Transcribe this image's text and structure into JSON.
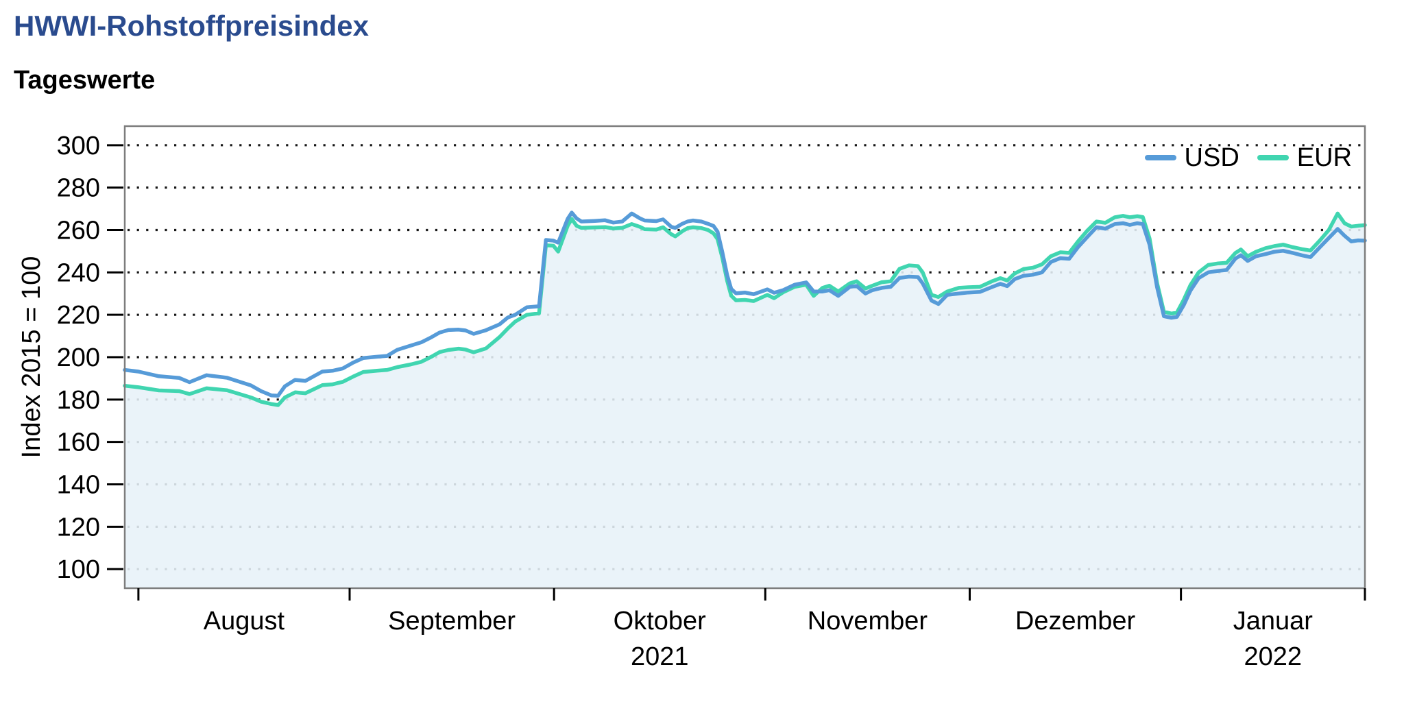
{
  "title": "HWWI-Rohstoffpreisindex",
  "subtitle": "Tageswerte",
  "colors": {
    "title": "#2a4b8e",
    "usd_line": "#569bd8",
    "eur_line": "#40d5b0",
    "grid": "#161616",
    "plot_border": "#7d7d7d",
    "area_fill": "#e7f1f8"
  },
  "chart_data": {
    "type": "line",
    "title": "HWWI-Rohstoffpreisindex",
    "subtitle": "Tageswerte",
    "ylabel": "Index 2015 = 100",
    "xlabel": "",
    "grid": "dotted horizontal",
    "legend_position": "top-right inside plot",
    "y_ticks": [
      300,
      280,
      260,
      240,
      220,
      200,
      180,
      160,
      140,
      120,
      100
    ],
    "ylim": [
      91,
      309
    ],
    "x_domain_days": [
      0,
      182
    ],
    "x_domain_note": "day 0 = 30.07.2021, day 182 = 28.01.2022",
    "x_months": [
      {
        "label": "August",
        "tick_day": 2,
        "mid_day": 17.5
      },
      {
        "label": "September",
        "tick_day": 33,
        "mid_day": 48
      },
      {
        "label": "Oktober",
        "year": "2021",
        "tick_day": 63,
        "mid_day": 78.5
      },
      {
        "label": "November",
        "tick_day": 94,
        "mid_day": 109
      },
      {
        "label": "Dezember",
        "tick_day": 124,
        "mid_day": 139.5
      },
      {
        "label": "Januar",
        "year": "2022",
        "tick_day": 155,
        "mid_day": 168.5
      },
      {
        "tick_day": 182
      }
    ],
    "legend": [
      {
        "name": "USD",
        "color": "#569bd8"
      },
      {
        "name": "EUR",
        "color": "#40d5b0"
      }
    ],
    "area_fill": {
      "under_series": "EUR",
      "color": "#e7f1f8",
      "opacity": 0.88
    },
    "points_format": [
      "day",
      "USD",
      "EUR"
    ],
    "points": [
      [
        0,
        194,
        186.5
      ],
      [
        2,
        193.2,
        185.8
      ],
      [
        5,
        191,
        184.3
      ],
      [
        8,
        190.2,
        184
      ],
      [
        9.5,
        188.2,
        182.6
      ],
      [
        12,
        191.5,
        185.3
      ],
      [
        15,
        190.3,
        184.4
      ],
      [
        18.5,
        186.7,
        181
      ],
      [
        20,
        184,
        179
      ],
      [
        21.5,
        182,
        177.9
      ],
      [
        22.5,
        181.8,
        177.4
      ],
      [
        23.5,
        186.3,
        181
      ],
      [
        25,
        189.3,
        183.4
      ],
      [
        26.5,
        188.8,
        183
      ],
      [
        29,
        193.2,
        186.8
      ],
      [
        30.5,
        193.6,
        187.2
      ],
      [
        32,
        194.7,
        188.4
      ],
      [
        33.5,
        197.4,
        190.8
      ],
      [
        35,
        199.6,
        193
      ],
      [
        37,
        200.2,
        193.6
      ],
      [
        38.5,
        200.6,
        194
      ],
      [
        40,
        203.5,
        195.3
      ],
      [
        42,
        205.5,
        196.6
      ],
      [
        43.5,
        207,
        197.8
      ],
      [
        45,
        209.4,
        200.2
      ],
      [
        46.2,
        211.6,
        202.4
      ],
      [
        47.5,
        212.8,
        203.4
      ],
      [
        49,
        213,
        204
      ],
      [
        50,
        212.6,
        203.6
      ],
      [
        51.2,
        211,
        202.3
      ],
      [
        53,
        212.7,
        204.1
      ],
      [
        55,
        215.5,
        209.5
      ],
      [
        56.2,
        218.7,
        213.5
      ],
      [
        57.3,
        220,
        216.8
      ],
      [
        59,
        223.5,
        220
      ],
      [
        60.8,
        224,
        220.7
      ],
      [
        61.8,
        255.3,
        252.8
      ],
      [
        62.9,
        255,
        252.6
      ],
      [
        63.6,
        254,
        249.8
      ],
      [
        65,
        265.3,
        262
      ],
      [
        65.6,
        268.2,
        265.2
      ],
      [
        66.3,
        265.5,
        262
      ],
      [
        67,
        264,
        261
      ],
      [
        69,
        264.3,
        261.2
      ],
      [
        70.5,
        264.6,
        261.4
      ],
      [
        71.7,
        263.5,
        260.7
      ],
      [
        73,
        264,
        261
      ],
      [
        74.4,
        267.8,
        262.8
      ],
      [
        75.6,
        265.5,
        261.5
      ],
      [
        76.3,
        264.5,
        260.4
      ],
      [
        78,
        264.2,
        260.2
      ],
      [
        79,
        265,
        261.3
      ],
      [
        80.2,
        261.5,
        258
      ],
      [
        80.8,
        261,
        257
      ],
      [
        81.8,
        262.9,
        259.4
      ],
      [
        82.6,
        264,
        260.9
      ],
      [
        83.4,
        264.5,
        261.3
      ],
      [
        84.6,
        264,
        260.9
      ],
      [
        85.6,
        262.9,
        260
      ],
      [
        86.4,
        261.9,
        258.4
      ],
      [
        87,
        259.2,
        255.7
      ],
      [
        87.7,
        249.5,
        246.8
      ],
      [
        88.4,
        238.7,
        236
      ],
      [
        89,
        232.2,
        229
      ],
      [
        89.7,
        230.1,
        226.8
      ],
      [
        91,
        230.5,
        227
      ],
      [
        92.3,
        229.7,
        226.5
      ],
      [
        94.3,
        232,
        229.4
      ],
      [
        95.3,
        230.4,
        227.8
      ],
      [
        96.6,
        231.6,
        230.6
      ],
      [
        98.3,
        234.2,
        233.2
      ],
      [
        100,
        235.3,
        234.2
      ],
      [
        101.1,
        231,
        228.9
      ],
      [
        102.4,
        231,
        232.7
      ],
      [
        103.4,
        231.6,
        233.7
      ],
      [
        104.7,
        228.9,
        231
      ],
      [
        106.4,
        233.2,
        234.8
      ],
      [
        107.4,
        233.6,
        235.8
      ],
      [
        108.7,
        230,
        232.4
      ],
      [
        109.7,
        231.6,
        233.7
      ],
      [
        111.1,
        232.7,
        235.4
      ],
      [
        112.4,
        233.2,
        235.8
      ],
      [
        113.7,
        237.4,
        241.7
      ],
      [
        115.1,
        238,
        243.3
      ],
      [
        116.4,
        237.8,
        243
      ],
      [
        117.1,
        234.8,
        240
      ],
      [
        118.4,
        226.7,
        229.4
      ],
      [
        119.4,
        225.1,
        228.4
      ],
      [
        120.7,
        229.4,
        231
      ],
      [
        122.4,
        230,
        232.7
      ],
      [
        123.8,
        230.5,
        233
      ],
      [
        125.5,
        230.8,
        233.2
      ],
      [
        127.2,
        233,
        235.7
      ],
      [
        128.5,
        234.6,
        237.3
      ],
      [
        129.5,
        233.5,
        236.2
      ],
      [
        130.6,
        236.8,
        239.5
      ],
      [
        131.9,
        238.4,
        241.6
      ],
      [
        133.3,
        238.9,
        242.2
      ],
      [
        134.6,
        240,
        243.8
      ],
      [
        135.9,
        244.9,
        247.6
      ],
      [
        137.3,
        246.7,
        249.5
      ],
      [
        138.6,
        246.4,
        249.2
      ],
      [
        139.9,
        251.9,
        254.6
      ],
      [
        141.2,
        256.5,
        259.5
      ],
      [
        142.6,
        261.3,
        264
      ],
      [
        143.9,
        260.6,
        263.4
      ],
      [
        145.3,
        262.8,
        266
      ],
      [
        146.5,
        263.2,
        266.7
      ],
      [
        147.5,
        262.4,
        266
      ],
      [
        148.6,
        263.2,
        266.5
      ],
      [
        149.4,
        262.8,
        266.1
      ],
      [
        150.4,
        253,
        256
      ],
      [
        151.5,
        233,
        235
      ],
      [
        152.5,
        219.3,
        221.4
      ],
      [
        153.6,
        218.6,
        220.6
      ],
      [
        154.4,
        219,
        221
      ],
      [
        155.4,
        224.5,
        227
      ],
      [
        156.4,
        231.4,
        234
      ],
      [
        157.6,
        237.3,
        240
      ],
      [
        159,
        240,
        243.5
      ],
      [
        160.4,
        240.7,
        244.2
      ],
      [
        161.7,
        241.1,
        244.5
      ],
      [
        163,
        246.5,
        249.2
      ],
      [
        163.8,
        248.1,
        250.8
      ],
      [
        164.8,
        245.4,
        247.6
      ],
      [
        166,
        247.6,
        249.7
      ],
      [
        167.4,
        248.6,
        251.4
      ],
      [
        168.7,
        249.7,
        252.4
      ],
      [
        170,
        250.2,
        253.1
      ],
      [
        171.4,
        249.2,
        251.9
      ],
      [
        172.7,
        248.1,
        251
      ],
      [
        174,
        247.2,
        250.3
      ],
      [
        175.4,
        251.9,
        255.1
      ],
      [
        176.7,
        256.2,
        260
      ],
      [
        178,
        260.5,
        267.8
      ],
      [
        179,
        257.3,
        263.2
      ],
      [
        180,
        254.6,
        261.6
      ],
      [
        181,
        255.1,
        262
      ],
      [
        182,
        255,
        262.3
      ]
    ]
  }
}
